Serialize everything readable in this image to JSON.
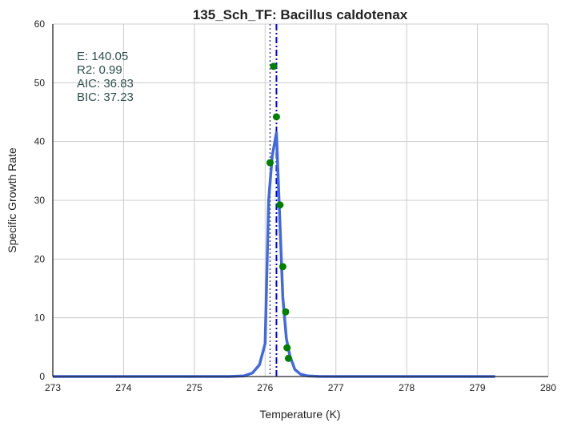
{
  "chart_data": {
    "type": "line",
    "title": "135_Sch_TF: Bacillus caldotenax",
    "xlabel": "Temperature (K)",
    "ylabel": "Specific Growth Rate",
    "xlim": [
      273,
      280
    ],
    "ylim": [
      0,
      60
    ],
    "xticks": [
      "273",
      "274",
      "275",
      "276",
      "277",
      "278",
      "279",
      "280"
    ],
    "yticks": [
      "0",
      "10",
      "20",
      "30",
      "40",
      "50",
      "60"
    ],
    "grid": true,
    "annotations": [
      "E:  140.05",
      "R2:  0.99",
      "AIC: 36.83",
      "BIC: 37.23"
    ],
    "colors": {
      "fit_line": "#4169e1",
      "points": "#008000",
      "tpk_line": "#0000ff",
      "t_opt_line": "#4a4a8a",
      "annotation": "#2f4f4f",
      "grid": "#cccccc"
    },
    "series": [
      {
        "kind": "observed",
        "x": [
          276.07,
          276.12,
          276.16,
          276.21,
          276.25,
          276.29,
          276.31,
          276.33
        ],
        "y": [
          36.4,
          52.8,
          44.2,
          29.2,
          18.7,
          11.0,
          4.9,
          3.1
        ]
      },
      {
        "kind": "model-fit",
        "x": [
          273.0,
          275.5,
          275.7,
          275.82,
          275.92,
          276.0,
          276.05,
          276.1,
          276.16,
          276.2,
          276.25,
          276.3,
          276.35,
          276.42,
          276.5,
          276.6,
          276.75,
          277.0,
          279.25
        ],
        "y": [
          0,
          0,
          0.1,
          0.6,
          2.0,
          5.6,
          30.0,
          37.5,
          41.5,
          29.0,
          13.5,
          6.5,
          3.5,
          1.2,
          0.4,
          0.1,
          0.02,
          0,
          0
        ]
      }
    ],
    "vlines": [
      {
        "x": 276.07,
        "style": "dotted"
      },
      {
        "x": 276.16,
        "style": "dashdot"
      }
    ]
  }
}
